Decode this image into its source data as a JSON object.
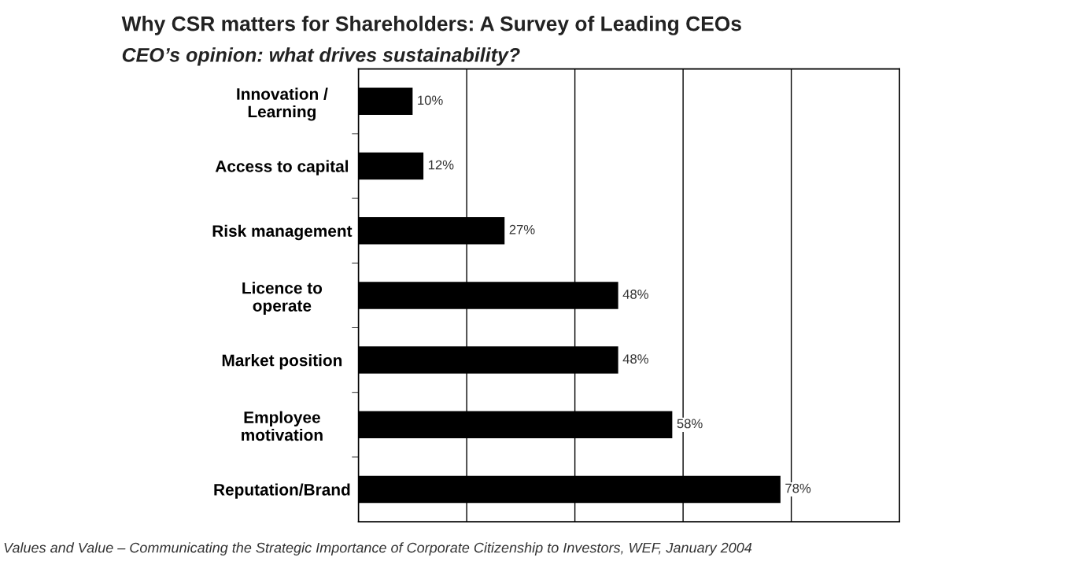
{
  "chart_data": {
    "type": "bar",
    "orientation": "horizontal",
    "title": "Why CSR matters for Shareholders: A Survey of Leading CEOs",
    "subtitle": "CEO’s opinion: what drives sustainability?",
    "categories": [
      "Innovation /\nLearning",
      "Access to capital",
      "Risk management",
      "Licence to\noperate",
      "Market position",
      "Employee\nmotivation",
      "Reputation/Brand"
    ],
    "values": [
      10,
      12,
      27,
      48,
      48,
      58,
      78
    ],
    "value_labels": [
      "10%",
      "12%",
      "27%",
      "48%",
      "48%",
      "58%",
      "78%"
    ],
    "color": "#000000",
    "xlim": [
      0,
      100
    ],
    "xticks": [
      {
        "value": 20,
        "label": null
      },
      {
        "value": 40,
        "label": null
      },
      {
        "value": 60,
        "label": null
      },
      {
        "value": 80,
        "label": null
      }
    ],
    "grid": "x",
    "tick_labels": "y",
    "annotations": [
      "Values and Value – Communicating the Strategic Importance of Corporate Citizenship to Investors, WEF, January 2004"
    ]
  }
}
